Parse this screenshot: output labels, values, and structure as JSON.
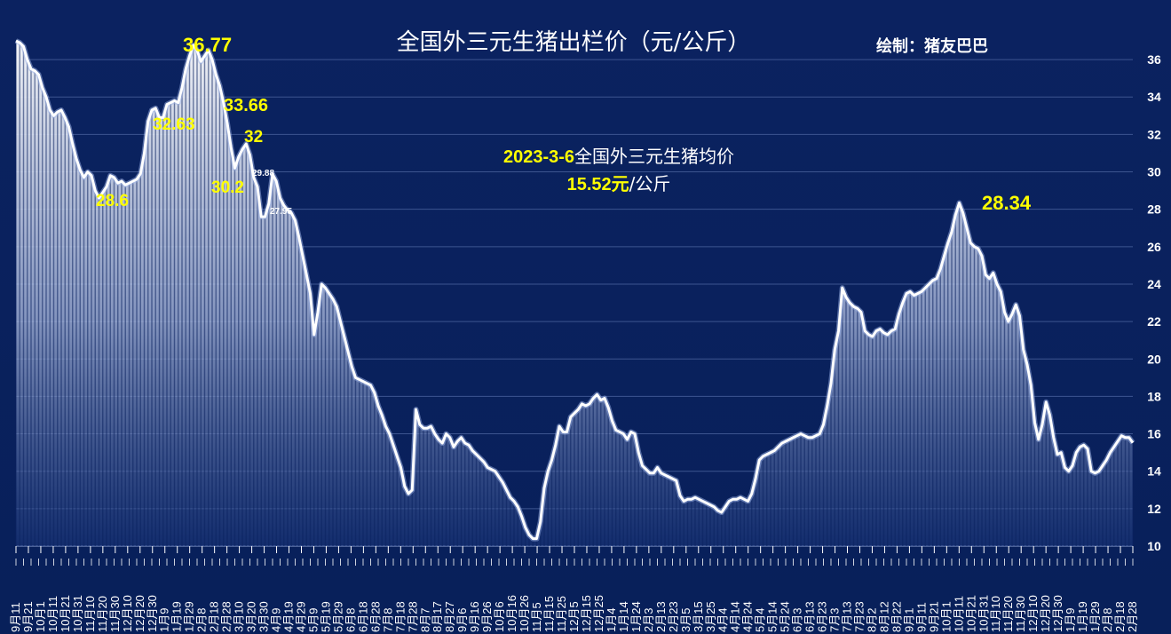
{
  "chart_data": {
    "type": "area",
    "title": "全国外三元生猪出栏价（元/公斤）",
    "credit": "绘制：猪友巴巴",
    "info": {
      "date": "2023-3-6",
      "line1_suffix": "全国外三元生猪均价",
      "price": "15.52",
      "unit_yuan": "元",
      "unit_rest": "/公斤"
    },
    "ylim": [
      10,
      37
    ],
    "yticks": [
      10,
      12,
      14,
      16,
      18,
      20,
      22,
      24,
      26,
      28,
      30,
      32,
      34,
      36
    ],
    "grid": true,
    "xtick_labels": [
      "9月11",
      "9月21",
      "10月1",
      "10月11",
      "10月21",
      "10月31",
      "11月10",
      "11月20",
      "11月30",
      "12月10",
      "12月20",
      "12月30",
      "1月9",
      "1月19",
      "1月29",
      "2月8",
      "2月18",
      "2月28",
      "3月10",
      "3月20",
      "3月30",
      "4月9",
      "4月19",
      "4月29",
      "5月9",
      "5月19",
      "5月29",
      "6月8",
      "6月18",
      "6月28",
      "7月8",
      "7月18",
      "7月28",
      "8月7",
      "8月17",
      "8月27",
      "9月6",
      "9月16",
      "9月26",
      "10月6",
      "10月16",
      "10月26",
      "11月5",
      "11月15",
      "11月25",
      "12月5",
      "12月15",
      "12月25",
      "1月4",
      "1月14",
      "1月24",
      "2月3",
      "2月13",
      "2月23",
      "3月5",
      "3月15",
      "3月25",
      "4月4",
      "4月14",
      "4月24",
      "5月4",
      "5月14",
      "5月24",
      "6月3",
      "6月13",
      "6月23",
      "7月3",
      "7月13",
      "7月23",
      "8月2",
      "8月12",
      "8月22",
      "9月1",
      "9月11",
      "9月21",
      "10月1",
      "10月11",
      "10月21",
      "10月31",
      "11月10",
      "11月20",
      "11月30",
      "12月10",
      "12月20",
      "12月30",
      "1月9",
      "1月19",
      "1月29",
      "2月8",
      "2月18",
      "2月28"
    ],
    "series": [
      {
        "values": [
          37.0,
          36.9,
          36.7,
          36.0,
          35.5,
          35.4,
          35.2,
          34.5,
          34.0,
          33.3,
          33.0,
          33.2,
          33.3,
          32.9,
          32.4,
          31.5,
          30.7,
          30.1,
          29.7,
          30.0,
          29.8,
          29.0,
          28.6,
          28.9,
          29.2,
          29.8,
          29.7,
          29.4,
          29.5,
          29.3,
          29.4,
          29.5,
          29.6,
          29.9,
          31.0,
          32.7,
          33.3,
          33.4,
          32.9,
          32.9,
          33.6,
          33.7,
          33.8,
          33.7,
          34.5,
          35.5,
          36.2,
          36.77,
          36.5,
          35.9,
          36.2,
          36.5,
          36.0,
          35.2,
          34.6,
          33.7,
          32.6,
          31.3,
          30.2,
          30.8,
          31.2,
          31.5,
          30.9,
          29.7,
          29.2,
          27.6,
          27.6,
          28.3,
          29.88,
          29.5,
          28.6,
          28.2,
          27.95,
          27.8,
          27.4,
          26.5,
          25.5,
          24.5,
          23.5,
          21.3,
          22.5,
          24.0,
          23.8,
          23.5,
          23.2,
          22.8,
          22.0,
          21.2,
          20.4,
          19.6,
          19.0,
          18.9,
          18.8,
          18.7,
          18.6,
          18.2,
          17.5,
          17.0,
          16.4,
          16.0,
          15.4,
          14.8,
          14.2,
          13.2,
          12.8,
          13.0,
          17.3,
          16.5,
          16.3,
          16.3,
          16.4,
          16.0,
          15.7,
          15.5,
          16.0,
          15.8,
          15.3,
          15.6,
          15.8,
          15.5,
          15.4,
          15.1,
          14.9,
          14.7,
          14.5,
          14.2,
          14.1,
          14.0,
          13.7,
          13.4,
          13.0,
          12.6,
          12.4,
          12.1,
          11.6,
          11.0,
          10.6,
          10.4,
          10.4,
          11.3,
          13.1,
          14.0,
          14.6,
          15.4,
          16.4,
          16.1,
          16.1,
          16.9,
          17.1,
          17.3,
          17.6,
          17.5,
          17.6,
          17.9,
          18.1,
          17.8,
          17.9,
          17.4,
          16.7,
          16.2,
          16.1,
          16.0,
          15.7,
          16.1,
          16.0,
          15.0,
          14.3,
          14.1,
          13.9,
          13.9,
          14.2,
          13.9,
          13.8,
          13.7,
          13.6,
          13.5,
          12.7,
          12.4,
          12.5,
          12.5,
          12.6,
          12.5,
          12.4,
          12.3,
          12.2,
          12.1,
          11.9,
          11.8,
          12.1,
          12.4,
          12.5,
          12.5,
          12.6,
          12.5,
          12.4,
          12.8,
          13.6,
          14.6,
          14.8,
          14.9,
          15.0,
          15.1,
          15.3,
          15.5,
          15.6,
          15.7,
          15.8,
          15.9,
          16.0,
          15.9,
          15.8,
          15.8,
          15.9,
          16.0,
          16.5,
          17.5,
          18.7,
          20.5,
          21.5,
          23.8,
          23.3,
          23.0,
          22.8,
          22.7,
          22.5,
          21.5,
          21.3,
          21.2,
          21.5,
          21.6,
          21.4,
          21.3,
          21.5,
          21.6,
          22.4,
          23.0,
          23.5,
          23.6,
          23.4,
          23.5,
          23.6,
          23.8,
          24.0,
          24.2,
          24.3,
          24.8,
          25.5,
          26.2,
          26.8,
          27.7,
          28.34,
          27.8,
          27.0,
          26.2,
          26.0,
          25.9,
          25.5,
          24.5,
          24.3,
          24.6,
          24.0,
          23.6,
          22.5,
          22.0,
          22.4,
          22.9,
          22.3,
          20.5,
          19.7,
          18.6,
          16.6,
          15.7,
          16.5,
          17.7,
          17.0,
          15.8,
          14.9,
          15.0,
          14.2,
          14.0,
          14.3,
          15.0,
          15.3,
          15.4,
          15.2,
          14.0,
          13.9,
          14.0,
          14.3,
          14.6,
          15.0,
          15.3,
          15.6,
          15.9,
          15.8,
          15.8,
          15.52
        ]
      }
    ],
    "annotations": [
      {
        "text": "36.77",
        "color": "yellow",
        "size": "large"
      },
      {
        "text": "33.66",
        "color": "yellow",
        "size": "medium"
      },
      {
        "text": "32.63",
        "color": "yellow",
        "size": "medium"
      },
      {
        "text": "32",
        "color": "yellow",
        "size": "medium"
      },
      {
        "text": "30.2",
        "color": "yellow",
        "size": "medium"
      },
      {
        "text": "29.88",
        "color": "white",
        "size": "small"
      },
      {
        "text": "28.6",
        "color": "yellow",
        "size": "medium"
      },
      {
        "text": "27.95",
        "color": "white",
        "size": "small"
      },
      {
        "text": "28.34",
        "color": "yellow",
        "size": "large"
      }
    ]
  }
}
